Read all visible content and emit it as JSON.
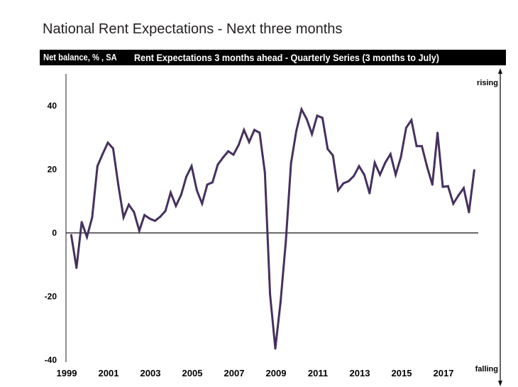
{
  "chart_data": {
    "type": "line",
    "title": "National Rent Expectations - Next three months",
    "banner_unit": "Net balance, % , SA",
    "subtitle": "Rent Expectations 3 months ahead - Quarterly Series (3 months to July)",
    "xlabel": "",
    "ylabel": "Net balance, %, SA",
    "ylim": [
      -40,
      50
    ],
    "yticks": [
      -40,
      -20,
      0,
      20,
      40
    ],
    "ytick_labels": [
      "-40",
      "-20",
      "0",
      "20",
      "40"
    ],
    "xticks": [
      1999,
      2001,
      2003,
      2005,
      2007,
      2009,
      2011,
      2013,
      2015,
      2017
    ],
    "xtick_labels": [
      "1999",
      "2001",
      "2003",
      "2005",
      "2007",
      "2009",
      "2011",
      "2013",
      "2015",
      "2017"
    ],
    "xlim": [
      1999,
      2019.3
    ],
    "zero_line": true,
    "grid": false,
    "annotations": {
      "top": "rising",
      "bottom": "falling"
    },
    "series": [
      {
        "name": "Rent Expectations 3 months ahead",
        "color": "#46305e",
        "start": 1999.25,
        "step": 0.25,
        "values": [
          -0.7,
          -11,
          3.4,
          -1.3,
          4.9,
          21,
          24.8,
          28.4,
          26.6,
          15,
          4.9,
          8.9,
          6.5,
          0.7,
          5.6,
          4.5,
          3.8,
          5.1,
          6.9,
          12.7,
          8.5,
          12,
          17.7,
          21,
          13.4,
          9.2,
          15.2,
          15.9,
          21.5,
          23.7,
          25.7,
          24.6,
          27.7,
          32.4,
          28.6,
          32.4,
          31.5,
          19,
          -19.4,
          -36.4,
          -21.7,
          -2.7,
          21.9,
          32,
          38.9,
          35.8,
          31.1,
          36.9,
          36.2,
          26.4,
          24.4,
          13.4,
          15.6,
          16.3,
          17.9,
          21,
          18.3,
          12.5,
          22.1,
          18.3,
          22.1,
          24.8,
          18.3,
          23.9,
          33.1,
          35.5,
          27.3,
          27.3,
          20.8,
          15.2,
          31.5,
          14.5,
          14.7,
          9.2,
          11.8,
          14.1,
          6.5,
          19.7
        ]
      }
    ]
  }
}
